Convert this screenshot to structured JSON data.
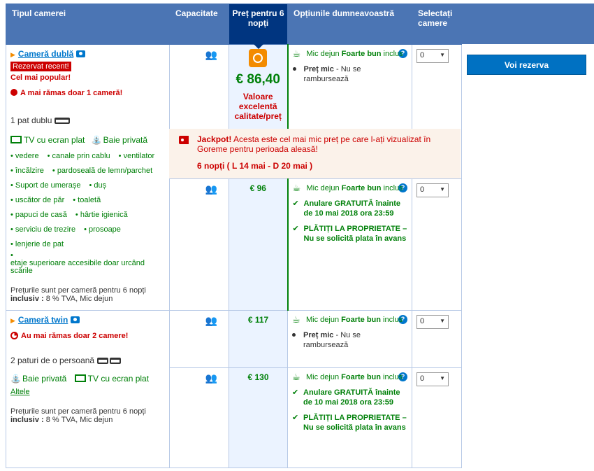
{
  "header": {
    "room_type": "Tipul camerei",
    "capacity": "Capacitate",
    "price": "Preț pentru 6 nopți",
    "options": "Opțiunile dumneavoastră",
    "select": "Selectați camere"
  },
  "rooms": [
    {
      "title": "Cameră dublă",
      "recent_badge": "Rezervat recent!",
      "popular": "Cel mai popular!",
      "rooms_left": "A mai rămas doar 1 cameră!",
      "bed": "1 pat dublu",
      "facilities_main": [
        "TV cu ecran plat",
        "Baie privată"
      ],
      "facilities": [
        "vedere",
        "canale prin cablu",
        "ventilator",
        "încălzire",
        "pardoseală de lemn/parchet",
        "Suport de umerașe",
        "duș",
        "uscător de păr",
        "toaletă",
        "papuci de casă",
        "hârtie igienică",
        "serviciu de trezire",
        "prosoape",
        "lenjerie de pat",
        "etaje superioare accesibile doar urcând scările"
      ],
      "price_note_1": "Prețurile sunt per cameră pentru 6 nopți",
      "price_note_bold": "inclusiv :",
      "price_note_2": "8 % TVA, Mic dejun",
      "offers": [
        {
          "price": "€ 86,40",
          "value_label": "Valoare excelentă calitate/preț",
          "breakfast": "Mic dejun",
          "breakfast_good": "Foarte bun",
          "breakfast_incl": "inclus",
          "line2_bold": "Preț mic",
          "line2_rest": "- Nu se rambursează",
          "select_value": "0"
        },
        {
          "price": "€ 96",
          "breakfast": "Mic dejun",
          "breakfast_good": "Foarte bun",
          "breakfast_incl": "inclus",
          "cancel": "Anulare GRATUITĂ înainte de 10 mai 2018 ora 23:59",
          "pay": "PLĂTIȚI LA PROPRIETATE – Nu se solicită plata în avans",
          "select_value": "0"
        }
      ]
    },
    {
      "title": "Cameră twin",
      "rooms_left": "Au mai rămas doar 2 camere!",
      "bed": "2 paturi de o persoană",
      "facilities_main": [
        "Baie privată",
        "TV cu ecran plat"
      ],
      "others_link": "Altele",
      "price_note_1": "Prețurile sunt per cameră pentru 6 nopți",
      "price_note_bold": "inclusiv :",
      "price_note_2": "8 % TVA, Mic dejun",
      "offers": [
        {
          "price": "€ 117",
          "breakfast": "Mic dejun",
          "breakfast_good": "Foarte bun",
          "breakfast_incl": "inclus",
          "line2_bold": "Preț mic",
          "line2_rest": "- Nu se rambursează",
          "select_value": "0"
        },
        {
          "price": "€ 130",
          "breakfast": "Mic dejun",
          "breakfast_good": "Foarte bun",
          "breakfast_incl": "inclus",
          "cancel": "Anulare GRATUITĂ înainte de 10 mai 2018 ora 23:59",
          "pay": "PLĂTIȚI LA PROPRIETATE – Nu se solicită plata în avans",
          "select_value": "0"
        }
      ]
    }
  ],
  "jackpot": {
    "bold": "Jackpot!",
    "text": "Acesta este cel mai mic preț pe care l-ați vizualizat în Goreme pentru perioada aleasă!",
    "dates": "6 nopți ( L 14 mai - D 20 mai )"
  },
  "book_button": "Voi rezerva",
  "colors": {
    "header_bg": "#4b75b4",
    "price_header_bg": "#003580",
    "accent_green": "#008009",
    "accent_red": "#cc0000",
    "button_blue": "#0071c2"
  }
}
